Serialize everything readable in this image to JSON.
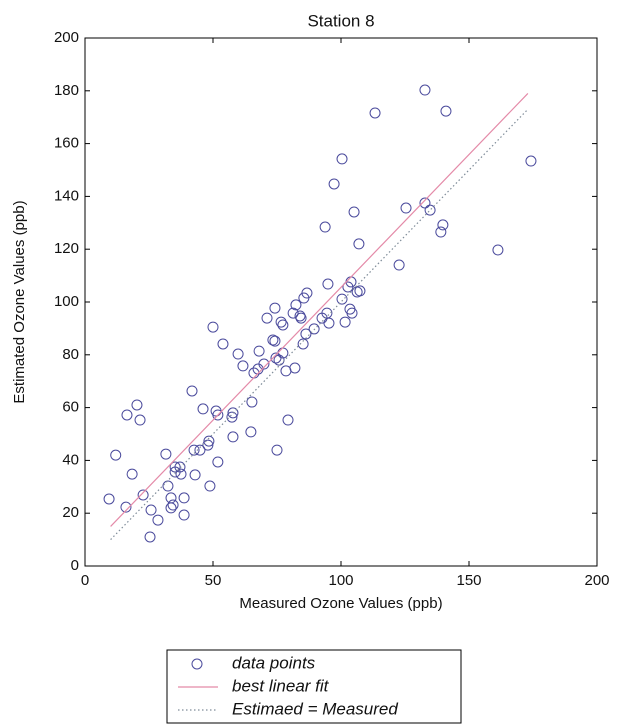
{
  "chart_data": {
    "type": "scatter",
    "title": "Station 8",
    "x_label": "Measured Ozone Values (ppb)",
    "y_label": "Estimated Ozone Values (ppb)",
    "xlim": [
      0,
      200
    ],
    "ylim": [
      0,
      200
    ],
    "xticks": [
      0,
      50,
      100,
      150,
      200
    ],
    "yticks": [
      0,
      20,
      40,
      60,
      80,
      100,
      120,
      140,
      160,
      180,
      200
    ],
    "grid": false,
    "legend_position": "below",
    "series": [
      {
        "name": "data points",
        "kind": "scatter",
        "color": "#4a4a9c",
        "x": [
          9.4,
          12,
          16.4,
          16,
          18.4,
          20.3,
          21.5,
          22.7,
          25.4,
          25.8,
          28.5,
          31.6,
          32.4,
          33.6,
          34.4,
          33.6,
          35.2,
          35.2,
          37.1,
          37.5,
          38.7,
          38.7,
          41.8,
          42.6,
          43,
          44.9,
          46.1,
          48,
          48.4,
          48.8,
          50,
          51.2,
          51.9,
          51.9,
          53.9,
          57.4,
          57.8,
          57.8,
          59.8,
          61.7,
          64.8,
          65.2,
          66,
          67.6,
          68,
          69.9,
          71.1,
          73.4,
          74.2,
          74.2,
          74.6,
          75,
          75.8,
          76.6,
          77.3,
          77.3,
          78.5,
          79.3,
          81.3,
          82,
          82.4,
          84,
          84.4,
          85.2,
          85.5,
          86.3,
          86.7,
          89.5,
          92.6,
          93.8,
          94.5,
          94.9,
          95.3,
          97.3,
          100.4,
          100.4,
          101.6,
          102.7,
          103.5,
          103.9,
          104.3,
          105.1,
          106.3,
          107,
          107.4,
          113.3,
          122.7,
          125.4,
          132.8,
          132.8,
          134.8,
          139,
          139.8,
          141,
          161.3,
          174.2
        ],
        "values": [
          25.4,
          42,
          57.2,
          22.3,
          34.8,
          61,
          55.3,
          26.9,
          11,
          21.2,
          17.4,
          42.4,
          30.3,
          25.8,
          23.1,
          22,
          35.6,
          37.5,
          37.5,
          34.8,
          25.8,
          19.3,
          66.3,
          43.9,
          34.5,
          43.9,
          59.5,
          45.8,
          47.3,
          30.3,
          90.5,
          58.7,
          57.2,
          39.4,
          84.1,
          56.4,
          58,
          48.9,
          80.3,
          75.8,
          50.8,
          62.1,
          73.1,
          74.6,
          81.4,
          76.5,
          93.9,
          85.6,
          85.2,
          97.7,
          78.8,
          43.9,
          78,
          92.4,
          80.7,
          91.3,
          73.9,
          55.3,
          95.8,
          75,
          98.9,
          94.7,
          93.9,
          84.1,
          101.5,
          87.9,
          103.4,
          89.8,
          93.9,
          128.4,
          95.8,
          106.8,
          92,
          144.7,
          101.1,
          154.2,
          92.4,
          105.7,
          97.3,
          107.6,
          95.8,
          134.1,
          103.8,
          122,
          104.2,
          171.6,
          114,
          135.6,
          180.3,
          137.5,
          134.8,
          126.5,
          129.2,
          172.3,
          119.7,
          153.4
        ]
      },
      {
        "name": "best linear fit",
        "kind": "line",
        "style": "solid",
        "color": "#e48aa8",
        "x": [
          10,
          173
        ],
        "values": [
          15,
          179
        ]
      },
      {
        "name": "Estimaed = Measured",
        "kind": "line",
        "style": "dotted",
        "color": "#7f8c99",
        "x": [
          10,
          173
        ],
        "values": [
          10,
          173
        ]
      }
    ]
  }
}
